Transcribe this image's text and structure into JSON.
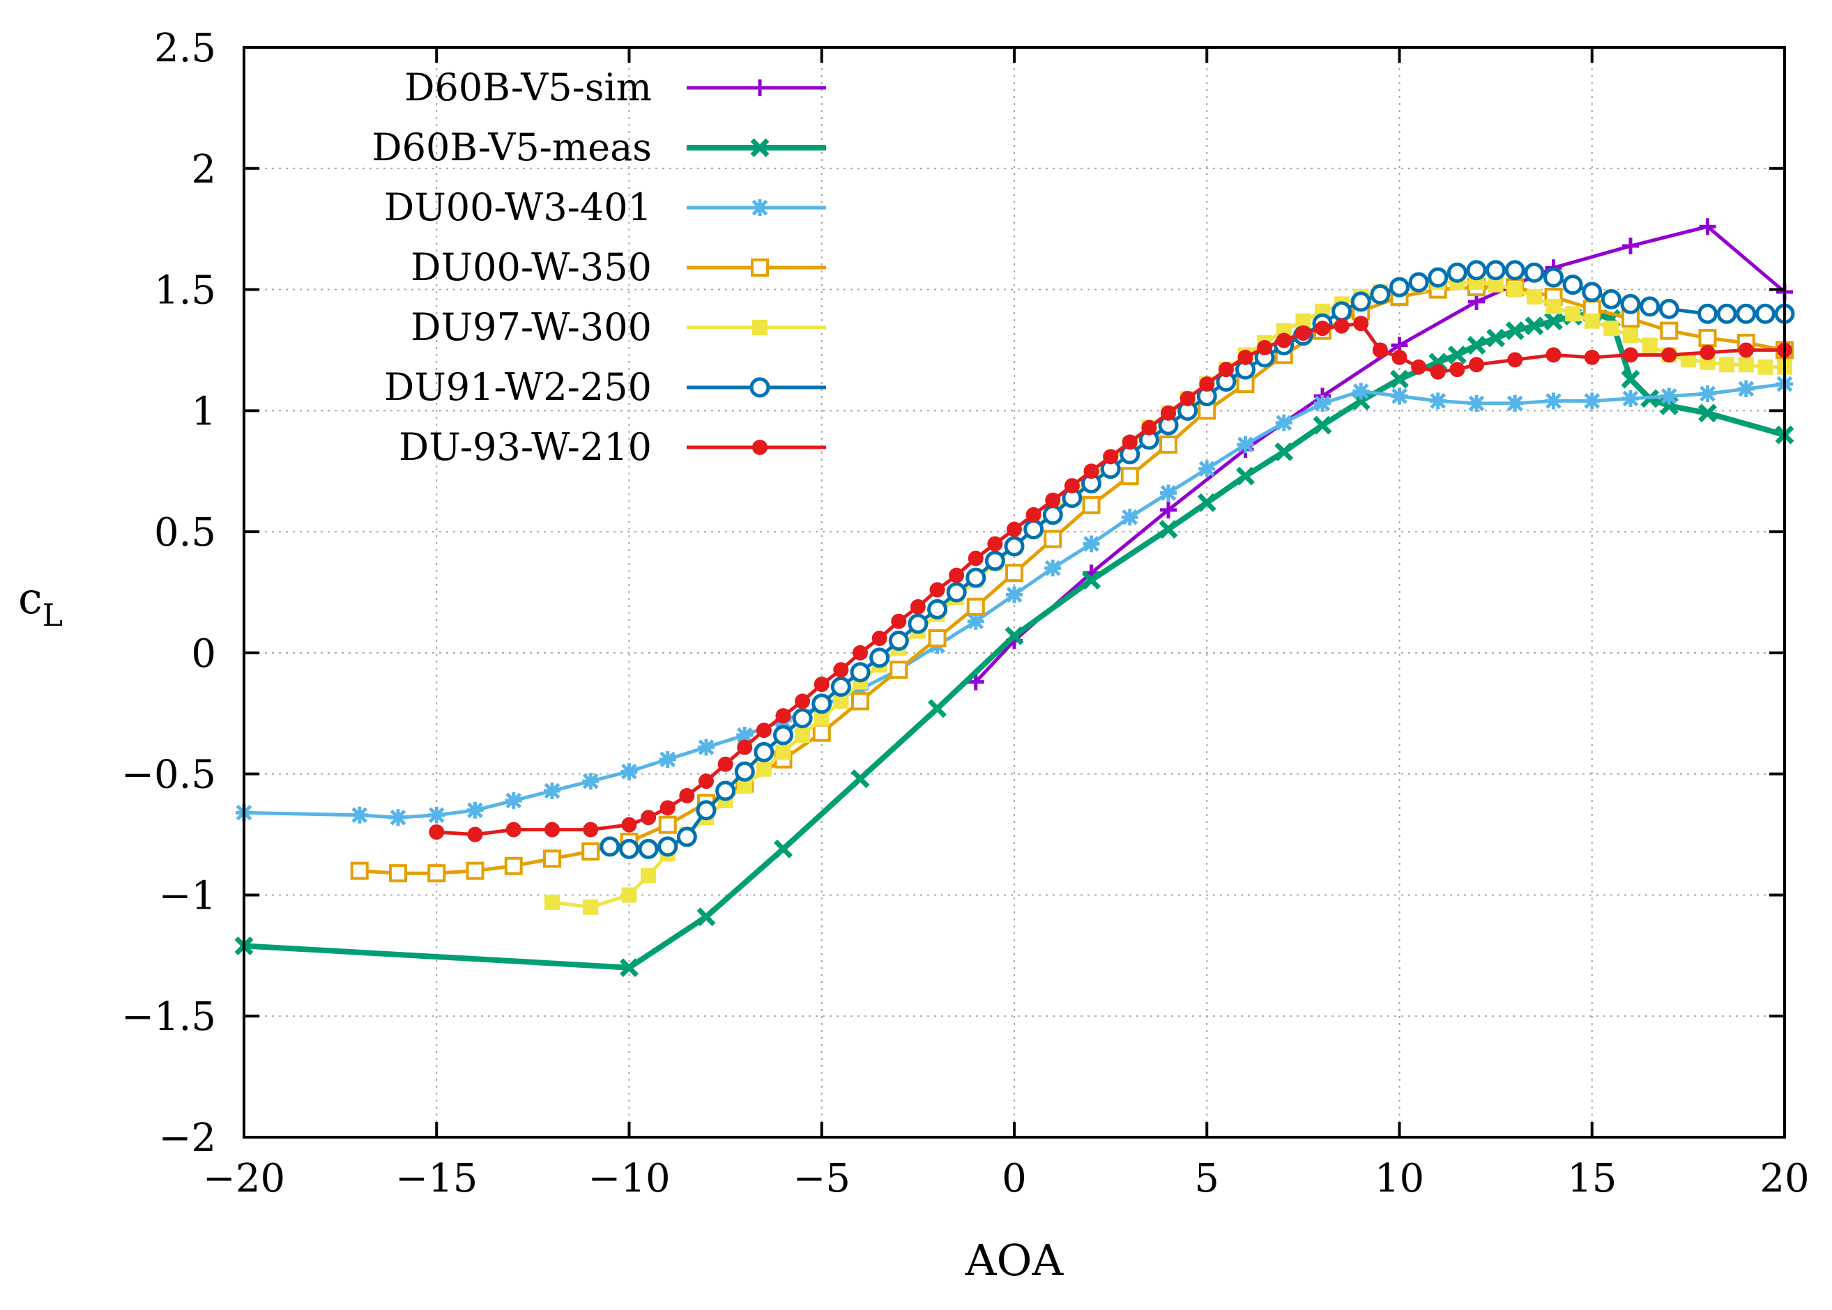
{
  "chart_data": {
    "type": "line",
    "title": "",
    "xlabel": "AOA",
    "ylabel": "c",
    "ylabel_subscript": "L",
    "xlim": [
      -20,
      20
    ],
    "ylim": [
      -2,
      2.5
    ],
    "grid": true,
    "legend_position": "top-left",
    "xticks": [
      -20,
      -15,
      -10,
      -5,
      0,
      5,
      10,
      15,
      20
    ],
    "xtick_labels": [
      "−20",
      "−15",
      "−10",
      "−5",
      "0",
      "5",
      "10",
      "15",
      "20"
    ],
    "yticks": [
      -2,
      -1.5,
      -1,
      -0.5,
      0,
      0.5,
      1,
      1.5,
      2,
      2.5
    ],
    "ytick_labels": [
      "−2",
      "−1.5",
      "−1",
      "−0.5",
      "0",
      "0.5",
      "1",
      "1.5",
      "2",
      "2.5"
    ],
    "series": [
      {
        "name": "D60B-V5-sim",
        "color": "#9400d3",
        "marker": "plus",
        "x": [
          -1,
          0,
          2,
          4,
          6,
          8,
          10,
          12,
          14,
          16,
          18,
          20
        ],
        "y": [
          -0.12,
          0.05,
          0.33,
          0.59,
          0.84,
          1.06,
          1.27,
          1.45,
          1.59,
          1.68,
          1.76,
          1.49
        ]
      },
      {
        "name": "D60B-V5-meas",
        "color": "#009e73",
        "marker": "cross",
        "x": [
          -20,
          -10,
          -8,
          -6,
          -4,
          -2,
          0,
          2,
          4,
          5,
          6,
          7,
          8,
          9,
          10,
          11,
          11.5,
          12,
          12.5,
          13,
          13.5,
          14,
          14.5,
          15,
          15.5,
          16,
          16.5,
          17,
          18,
          20
        ],
        "y": [
          -1.21,
          -1.3,
          -1.09,
          -0.81,
          -0.52,
          -0.23,
          0.07,
          0.3,
          0.51,
          0.62,
          0.73,
          0.83,
          0.94,
          1.04,
          1.13,
          1.2,
          1.23,
          1.27,
          1.3,
          1.33,
          1.35,
          1.37,
          1.39,
          1.4,
          1.38,
          1.13,
          1.05,
          1.02,
          0.99,
          0.9
        ]
      },
      {
        "name": "DU00-W3-401",
        "color": "#56b4e9",
        "marker": "star",
        "x": [
          -20,
          -17,
          -16,
          -15,
          -14,
          -13,
          -12,
          -11,
          -10,
          -9,
          -8,
          -7,
          -6,
          -5,
          -4,
          -3,
          -2,
          -1,
          0,
          1,
          2,
          3,
          4,
          5,
          6,
          7,
          8,
          9,
          10,
          11,
          12,
          13,
          14,
          15,
          16,
          17,
          18,
          19,
          20
        ],
        "y": [
          -0.66,
          -0.67,
          -0.68,
          -0.67,
          -0.65,
          -0.61,
          -0.57,
          -0.53,
          -0.49,
          -0.44,
          -0.39,
          -0.34,
          -0.28,
          -0.22,
          -0.15,
          -0.07,
          0.03,
          0.13,
          0.24,
          0.35,
          0.45,
          0.56,
          0.66,
          0.76,
          0.86,
          0.95,
          1.03,
          1.08,
          1.06,
          1.04,
          1.03,
          1.03,
          1.04,
          1.04,
          1.05,
          1.06,
          1.07,
          1.09,
          1.11
        ]
      },
      {
        "name": "DU00-W-350",
        "color": "#e69f00",
        "marker": "square-open",
        "x": [
          -17,
          -16,
          -15,
          -14,
          -13,
          -12,
          -11,
          -10,
          -9,
          -8,
          -7,
          -6,
          -5,
          -4,
          -3,
          -2,
          -1,
          0,
          1,
          2,
          3,
          4,
          5,
          6,
          7,
          8,
          9,
          10,
          11,
          12,
          13,
          14,
          15,
          16,
          17,
          18,
          19,
          20
        ],
        "y": [
          -0.9,
          -0.91,
          -0.91,
          -0.9,
          -0.88,
          -0.85,
          -0.82,
          -0.78,
          -0.71,
          -0.62,
          -0.54,
          -0.44,
          -0.33,
          -0.2,
          -0.07,
          0.06,
          0.19,
          0.33,
          0.47,
          0.61,
          0.73,
          0.86,
          1.0,
          1.11,
          1.23,
          1.33,
          1.41,
          1.47,
          1.5,
          1.51,
          1.51,
          1.47,
          1.42,
          1.38,
          1.33,
          1.3,
          1.28,
          1.25
        ]
      },
      {
        "name": "DU97-W-300",
        "color": "#f0e442",
        "marker": "square-filled",
        "x": [
          -12,
          -11,
          -10,
          -9.5,
          -9,
          -8.5,
          -8,
          -7.5,
          -7,
          -6.5,
          -6,
          -5.5,
          -5,
          -4.5,
          -4,
          -3.5,
          -3,
          -2.5,
          -2,
          -1.5,
          -1,
          -0.5,
          0,
          0.5,
          1,
          1.5,
          2,
          2.5,
          3,
          3.5,
          4,
          4.5,
          5,
          5.5,
          6,
          6.5,
          7,
          7.5,
          8,
          8.5,
          9,
          9.5,
          10,
          10.5,
          11,
          11.5,
          12,
          12.5,
          13,
          13.5,
          14,
          14.5,
          15,
          15.5,
          16,
          16.5,
          17,
          17.5,
          18,
          18.5,
          19,
          19.5,
          20
        ],
        "y": [
          -1.03,
          -1.05,
          -1.0,
          -0.92,
          -0.83,
          -0.75,
          -0.68,
          -0.61,
          -0.55,
          -0.48,
          -0.41,
          -0.34,
          -0.27,
          -0.2,
          -0.12,
          -0.05,
          0.02,
          0.09,
          0.16,
          0.23,
          0.3,
          0.37,
          0.44,
          0.51,
          0.58,
          0.65,
          0.72,
          0.79,
          0.86,
          0.93,
          0.99,
          1.05,
          1.11,
          1.17,
          1.23,
          1.28,
          1.33,
          1.37,
          1.41,
          1.44,
          1.47,
          1.49,
          1.51,
          1.52,
          1.53,
          1.53,
          1.53,
          1.52,
          1.5,
          1.47,
          1.43,
          1.4,
          1.37,
          1.34,
          1.31,
          1.27,
          1.23,
          1.21,
          1.2,
          1.19,
          1.19,
          1.18,
          1.18
        ]
      },
      {
        "name": "DU91-W2-250",
        "color": "#0072b2",
        "marker": "circle-open",
        "x": [
          -10.5,
          -10,
          -9.5,
          -9,
          -8.5,
          -8,
          -7.5,
          -7,
          -6.5,
          -6,
          -5.5,
          -5,
          -4.5,
          -4,
          -3.5,
          -3,
          -2.5,
          -2,
          -1.5,
          -1,
          -0.5,
          0,
          0.5,
          1,
          1.5,
          2,
          2.5,
          3,
          3.5,
          4,
          4.5,
          5,
          5.5,
          6,
          6.5,
          7,
          7.5,
          8,
          8.5,
          9,
          9.5,
          10,
          10.5,
          11,
          11.5,
          12,
          12.5,
          13,
          13.5,
          14,
          14.5,
          15,
          15.5,
          16,
          16.5,
          17,
          18,
          18.5,
          19,
          19.5,
          20
        ],
        "y": [
          -0.8,
          -0.81,
          -0.81,
          -0.8,
          -0.76,
          -0.65,
          -0.57,
          -0.49,
          -0.41,
          -0.34,
          -0.27,
          -0.21,
          -0.14,
          -0.08,
          -0.02,
          0.05,
          0.12,
          0.18,
          0.25,
          0.31,
          0.38,
          0.44,
          0.51,
          0.57,
          0.64,
          0.7,
          0.76,
          0.82,
          0.88,
          0.94,
          1.0,
          1.06,
          1.12,
          1.17,
          1.22,
          1.27,
          1.31,
          1.36,
          1.41,
          1.45,
          1.48,
          1.51,
          1.53,
          1.55,
          1.57,
          1.58,
          1.58,
          1.58,
          1.57,
          1.55,
          1.52,
          1.49,
          1.46,
          1.44,
          1.43,
          1.42,
          1.4,
          1.4,
          1.4,
          1.4,
          1.4
        ]
      },
      {
        "name": "DU-93-W-210",
        "color": "#e41a1c",
        "marker": "circle-filled",
        "x": [
          -15,
          -14,
          -13,
          -12,
          -11,
          -10,
          -9.5,
          -9,
          -8.5,
          -8,
          -7.5,
          -7,
          -6.5,
          -6,
          -5.5,
          -5,
          -4.5,
          -4,
          -3.5,
          -3,
          -2.5,
          -2,
          -1.5,
          -1,
          -0.5,
          0,
          0.5,
          1,
          1.5,
          2,
          2.5,
          3,
          3.5,
          4,
          4.5,
          5,
          5.5,
          6,
          6.5,
          7,
          7.5,
          8,
          8.5,
          9,
          9.5,
          10,
          10.5,
          11,
          11.5,
          12,
          13,
          14,
          15,
          16,
          17,
          18,
          19,
          20
        ],
        "y": [
          -0.74,
          -0.75,
          -0.73,
          -0.73,
          -0.73,
          -0.71,
          -0.68,
          -0.64,
          -0.59,
          -0.53,
          -0.46,
          -0.39,
          -0.32,
          -0.26,
          -0.2,
          -0.13,
          -0.07,
          0.0,
          0.06,
          0.13,
          0.19,
          0.26,
          0.32,
          0.39,
          0.45,
          0.51,
          0.57,
          0.63,
          0.69,
          0.75,
          0.81,
          0.87,
          0.93,
          0.99,
          1.05,
          1.11,
          1.17,
          1.22,
          1.26,
          1.29,
          1.32,
          1.34,
          1.35,
          1.36,
          1.25,
          1.22,
          1.18,
          1.16,
          1.17,
          1.19,
          1.21,
          1.23,
          1.22,
          1.23,
          1.23,
          1.24,
          1.25,
          1.25
        ]
      }
    ]
  }
}
